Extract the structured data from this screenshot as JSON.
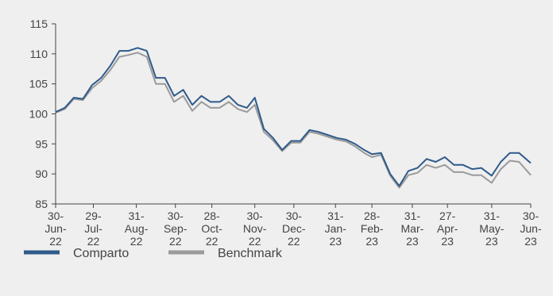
{
  "chart_data": {
    "type": "line",
    "x": [
      "2022-06-30",
      "2022-07-07",
      "2022-07-14",
      "2022-07-21",
      "2022-07-28",
      "2022-08-04",
      "2022-08-11",
      "2022-08-18",
      "2022-08-25",
      "2022-09-01",
      "2022-09-08",
      "2022-09-15",
      "2022-09-22",
      "2022-09-29",
      "2022-10-06",
      "2022-10-13",
      "2022-10-20",
      "2022-10-27",
      "2022-11-03",
      "2022-11-10",
      "2022-11-17",
      "2022-11-24",
      "2022-11-30",
      "2022-12-07",
      "2022-12-14",
      "2022-12-21",
      "2022-12-28",
      "2023-01-04",
      "2023-01-11",
      "2023-01-18",
      "2023-01-25",
      "2023-02-01",
      "2023-02-08",
      "2023-02-15",
      "2023-02-22",
      "2023-02-28",
      "2023-03-07",
      "2023-03-14",
      "2023-03-21",
      "2023-03-28",
      "2023-04-04",
      "2023-04-11",
      "2023-04-18",
      "2023-04-25",
      "2023-05-02",
      "2023-05-09",
      "2023-05-16",
      "2023-05-23",
      "2023-05-31",
      "2023-06-07",
      "2023-06-14",
      "2023-06-21",
      "2023-06-30"
    ],
    "series": [
      {
        "name": "Comparto",
        "color": "#2f5b8a",
        "values": [
          100.3,
          101,
          102.7,
          102.5,
          104.8,
          106,
          108,
          110.5,
          110.5,
          111,
          110.5,
          106,
          106,
          103,
          104,
          101.5,
          103,
          102,
          102,
          103,
          101.5,
          101,
          102.7,
          97.5,
          96,
          94,
          95.5,
          95.5,
          97.3,
          97,
          96.5,
          96,
          95.7,
          95,
          94,
          93.3,
          93.5,
          90,
          88,
          90.5,
          91,
          92.5,
          92,
          92.8,
          91.5,
          91.5,
          90.8,
          91,
          89.7,
          92,
          93.5,
          93.5,
          91.8
        ]
      },
      {
        "name": "Benchmark",
        "color": "#9a9a9a",
        "values": [
          100.2,
          100.8,
          102.5,
          102.3,
          104.3,
          105.5,
          107.3,
          109.5,
          109.8,
          110.2,
          109.5,
          105,
          105,
          102,
          103,
          100.5,
          102,
          101,
          101,
          102,
          100.8,
          100.3,
          101.5,
          97,
          95.6,
          93.8,
          95.2,
          95.2,
          97,
          96.7,
          96.2,
          95.7,
          95.4,
          94.6,
          93.5,
          92.8,
          93.2,
          89.7,
          87.7,
          89.8,
          90.2,
          91.5,
          91,
          91.5,
          90.3,
          90.3,
          89.8,
          89.8,
          88.5,
          90.8,
          92.2,
          92,
          89.8
        ]
      }
    ],
    "xlim": [
      "2022-06-30",
      "2023-06-30"
    ],
    "xticks": [
      {
        "value": "2022-06-30",
        "label": "30-Jun-22"
      },
      {
        "value": "2022-07-29",
        "label": "29-Jul-22"
      },
      {
        "value": "2022-08-31",
        "label": "31-Aug-22"
      },
      {
        "value": "2022-09-30",
        "label": "30-Sep-22"
      },
      {
        "value": "2022-10-28",
        "label": "28-Oct-22"
      },
      {
        "value": "2022-11-30",
        "label": "30-Nov-22"
      },
      {
        "value": "2022-12-30",
        "label": "30-Dec-22"
      },
      {
        "value": "2023-01-31",
        "label": "31-Jan-23"
      },
      {
        "value": "2023-02-28",
        "label": "28-Feb-23"
      },
      {
        "value": "2023-03-31",
        "label": "31-Mar-23"
      },
      {
        "value": "2023-04-27",
        "label": "27-Apr-23"
      },
      {
        "value": "2023-05-31",
        "label": "31-May-23"
      },
      {
        "value": "2023-06-30",
        "label": "30-Jun-23"
      }
    ],
    "ylim": [
      85,
      115
    ],
    "yticks": [
      85,
      90,
      95,
      100,
      105,
      110,
      115
    ],
    "grid": false
  }
}
